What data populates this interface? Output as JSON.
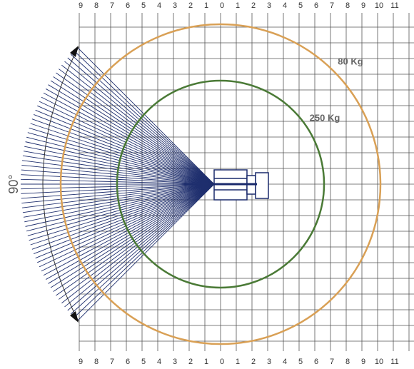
{
  "x_axis_top": [
    "9",
    "8",
    "7",
    "6",
    "5",
    "4",
    "3",
    "2",
    "1",
    "0",
    "1",
    "2",
    "3",
    "4",
    "5",
    "6",
    "7",
    "8",
    "9",
    "10",
    "11"
  ],
  "x_axis_bottom": [
    "9",
    "8",
    "7",
    "6",
    "5",
    "4",
    "3",
    "2",
    "1",
    "0",
    "1",
    "2",
    "3",
    "4",
    "5",
    "6",
    "7",
    "8",
    "9",
    "10",
    "11"
  ],
  "zones": [
    {
      "label": "80 Kg"
    },
    {
      "label": "250 Kg"
    }
  ],
  "angle_label": "90°"
}
